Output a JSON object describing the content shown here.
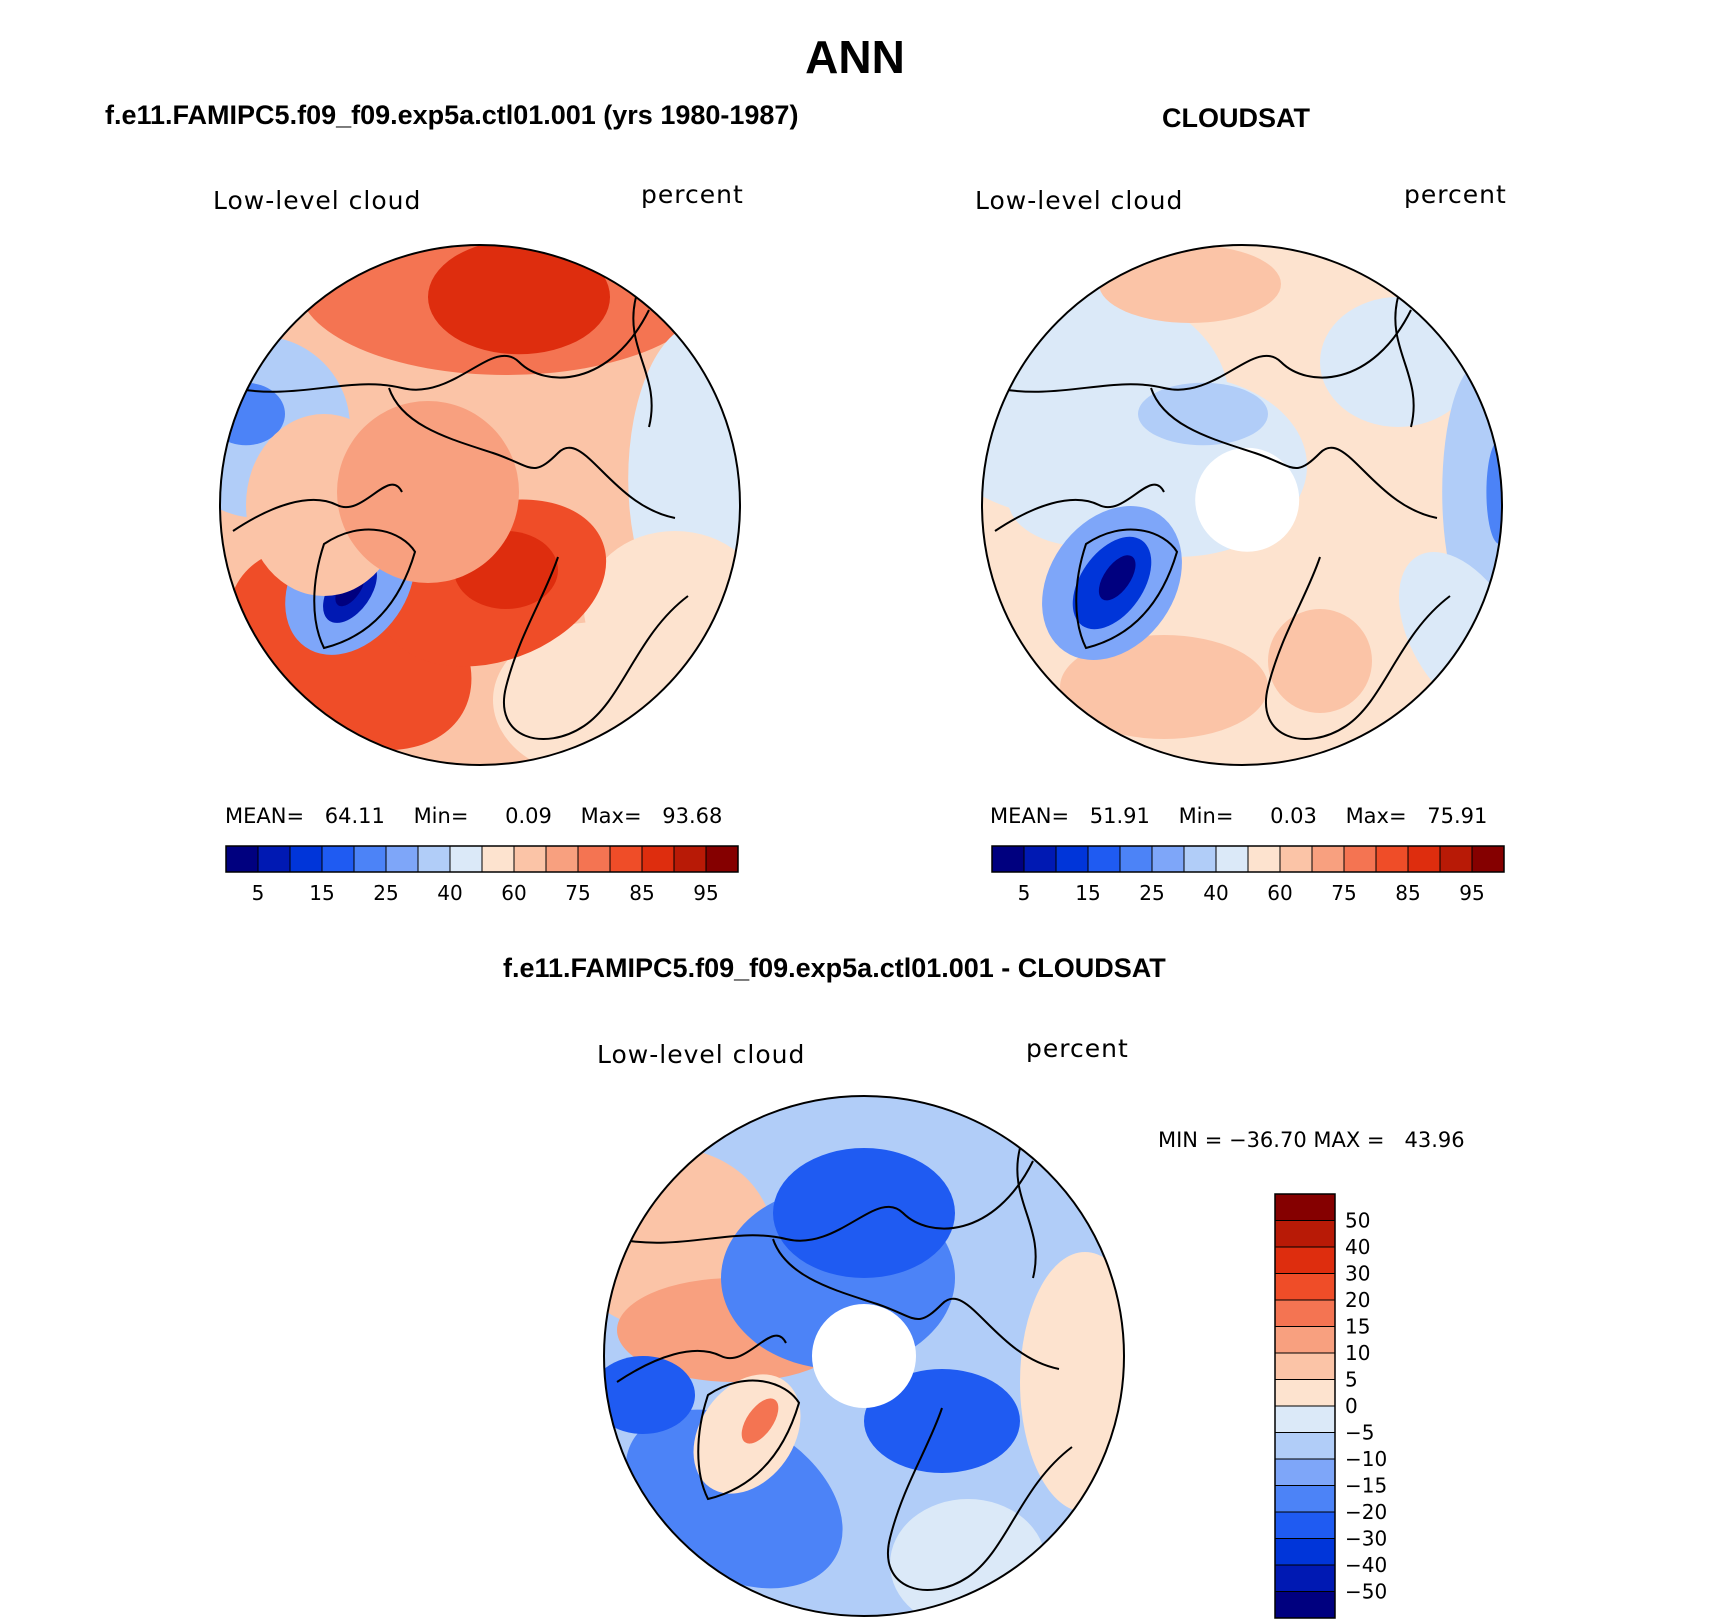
{
  "title": "ANN",
  "panels": [
    {
      "id": "model",
      "subtitle": "f.e11.FAMIPC5.f09_f09.exp5a.ctl01.001 (yrs 1980-1987)",
      "left_label": "Low-level cloud",
      "right_label": "percent",
      "stats": {
        "mean_label": "MEAN=",
        "mean": "64.11",
        "min_label": "Min=",
        "min": "0.09",
        "max_label": "Max=",
        "max": "93.68"
      }
    },
    {
      "id": "obs",
      "subtitle": "CLOUDSAT",
      "left_label": "Low-level cloud",
      "right_label": "percent",
      "stats": {
        "mean_label": "MEAN=",
        "mean": "51.91",
        "min_label": "Min=",
        "min": "0.03",
        "max_label": "Max=",
        "max": "75.91"
      }
    },
    {
      "id": "diff",
      "subtitle": "f.e11.FAMIPC5.f09_f09.exp5a.ctl01.001 - CLOUDSAT",
      "left_label": "Low-level cloud",
      "right_label": "percent",
      "stats_text": "MIN = −36.70 MAX =   43.96"
    }
  ],
  "chart_data": [
    {
      "type": "heatmap",
      "projection": "north polar stereographic",
      "colorbar": {
        "orientation": "horizontal",
        "tick_labels": [
          "5",
          "15",
          "25",
          "40",
          "60",
          "75",
          "85",
          "95"
        ],
        "colors": [
          "#00007f",
          "#0019b3",
          "#0035d9",
          "#1f5bf2",
          "#4c83f7",
          "#7ea6f9",
          "#b1cdf8",
          "#dbe9f8",
          "#fde3cf",
          "#fbc4a7",
          "#f8a07f",
          "#f47452",
          "#ef4d28",
          "#de2d0e",
          "#b81a06",
          "#850000"
        ]
      }
    },
    {
      "type": "heatmap",
      "projection": "north polar stereographic",
      "colorbar": {
        "orientation": "horizontal",
        "tick_labels": [
          "5",
          "15",
          "25",
          "40",
          "60",
          "75",
          "85",
          "95"
        ],
        "colors": [
          "#00007f",
          "#0019b3",
          "#0035d9",
          "#1f5bf2",
          "#4c83f7",
          "#7ea6f9",
          "#b1cdf8",
          "#dbe9f8",
          "#fde3cf",
          "#fbc4a7",
          "#f8a07f",
          "#f47452",
          "#ef4d28",
          "#de2d0e",
          "#b81a06",
          "#850000"
        ]
      }
    },
    {
      "type": "heatmap",
      "projection": "north polar stereographic",
      "colorbar": {
        "orientation": "vertical",
        "tick_labels": [
          "50",
          "40",
          "30",
          "20",
          "15",
          "10",
          "5",
          "0",
          "−5",
          "−10",
          "−15",
          "−20",
          "−30",
          "−40",
          "−50"
        ],
        "colors": [
          "#850000",
          "#b81a06",
          "#de2d0e",
          "#ef4d28",
          "#f47452",
          "#f8a07f",
          "#fbc4a7",
          "#fde3cf",
          "#dbe9f8",
          "#b1cdf8",
          "#7ea6f9",
          "#4c83f7",
          "#1f5bf2",
          "#0035d9",
          "#0019b3",
          "#00007f"
        ]
      }
    }
  ]
}
